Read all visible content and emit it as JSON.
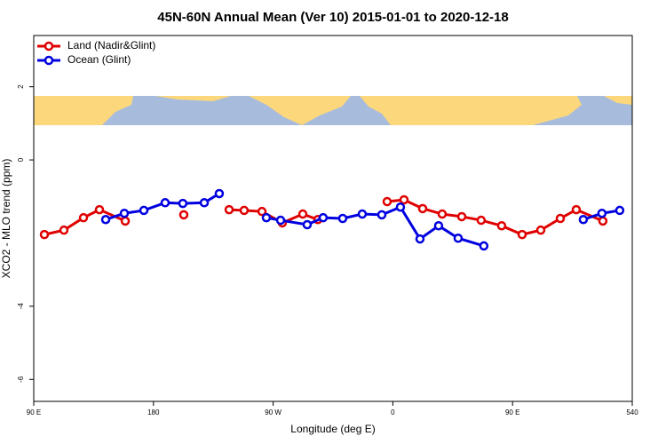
{
  "chart_data": {
    "type": "line",
    "title": "45N-60N Annual Mean (Ver 10)   2015-01-01 to 2020-12-18",
    "xlabel": "Longitude (deg E)",
    "ylabel": "XCO2 - MLO trend (ppm)",
    "xlim": [
      90,
      540
    ],
    "ylim": [
      -6.6,
      3.4
    ],
    "xticks": [
      {
        "value": 90,
        "label": "90 E"
      },
      180,
      {
        "value": 270,
        "label": "90 W"
      },
      {
        "value": 360,
        "label": "0"
      },
      {
        "value": 450,
        "label": "90 E"
      },
      540
    ],
    "yticks": [
      -6,
      -4,
      0,
      2
    ],
    "legend": "top-left",
    "series": [
      {
        "name": "Land (Nadir&Glint)",
        "color": "#e00000",
        "x": [
          98,
          112.7,
          127.4,
          139.4,
          158.8,
          null,
          202.8,
          null,
          236.9,
          248.2,
          261.6,
          276.9,
          292.3,
          303.6,
          null,
          355.7,
          368.4,
          382.4,
          397.1,
          411.8,
          426.4,
          441.8,
          457.2,
          471.2,
          485.9,
          497.9,
          517.9
        ],
        "values": [
          -2.04,
          -1.92,
          -1.58,
          -1.36,
          -1.67,
          null,
          -1.5,
          null,
          -1.36,
          -1.38,
          -1.41,
          -1.72,
          -1.48,
          -1.63,
          null,
          -1.14,
          -1.09,
          -1.33,
          -1.48,
          -1.55,
          -1.65,
          -1.8,
          -2.04,
          -1.92,
          -1.6,
          -1.36,
          -1.67
        ]
      },
      {
        "name": "Ocean (Glint)",
        "color": "#0000e0",
        "x": [
          144.1,
          158.1,
          172.8,
          188.8,
          202.1,
          218.2,
          229.5,
          null,
          264.9,
          275.6,
          295.6,
          307.6,
          322.3,
          337,
          351.7,
          365.7,
          380.4,
          394.4,
          409.1,
          428.4,
          null,
          503.2,
          517.2,
          530.6
        ],
        "values": [
          -1.63,
          -1.46,
          -1.38,
          -1.17,
          -1.19,
          -1.17,
          -0.92,
          null,
          -1.58,
          -1.65,
          -1.77,
          -1.58,
          -1.6,
          -1.48,
          -1.5,
          -1.29,
          -2.16,
          -1.8,
          -2.14,
          -2.35,
          null,
          -1.63,
          -1.46,
          -1.38
        ]
      }
    ]
  }
}
